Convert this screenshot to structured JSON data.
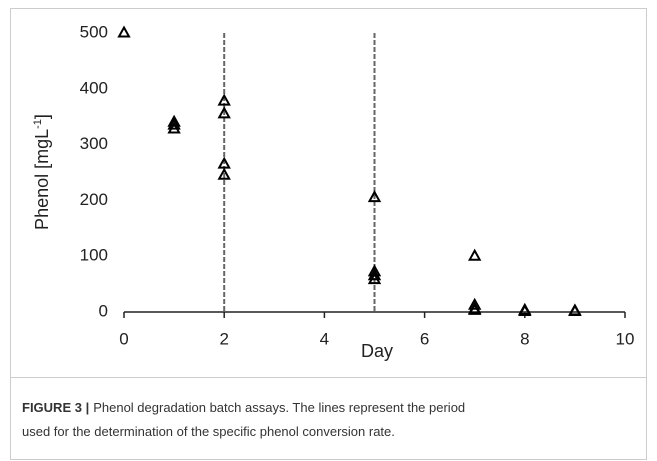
{
  "chart_data": {
    "type": "scatter",
    "y_label": "Phenol [mgL",
    "y_label_sup": "-1",
    "y_label_end": "]",
    "x_label": "Day",
    "x": [
      0,
      1,
      1,
      1,
      2,
      2,
      2,
      2,
      5,
      5,
      5,
      5,
      7,
      7,
      7,
      7,
      8,
      8,
      9,
      9
    ],
    "values": [
      500,
      340,
      335,
      328,
      378,
      355,
      265,
      245,
      205,
      72,
      65,
      58,
      100,
      12,
      5,
      3,
      3,
      1,
      2,
      1
    ],
    "color": "#000000",
    "vlines": [
      2,
      5
    ],
    "xlim": [
      0,
      10
    ],
    "xticks": [
      0,
      2,
      4,
      6,
      8,
      10
    ],
    "ylim": [
      0,
      500
    ],
    "yticks": [
      0,
      100,
      200,
      300,
      400,
      500
    ],
    "grid": false
  },
  "caption": {
    "label": "FIGURE 3 |",
    "text_line1": "Phenol degradation batch assays. The lines represent the period",
    "text_line2": "used for the determination of the specific phenol conversion rate."
  }
}
